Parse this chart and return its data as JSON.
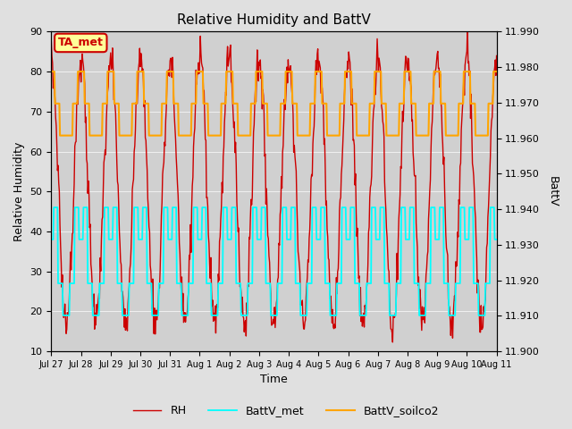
{
  "title": "Relative Humidity and BattV",
  "ylabel_left": "Relative Humidity",
  "ylabel_right": "BattV",
  "xlabel": "Time",
  "ylim_left": [
    10,
    90
  ],
  "ylim_right": [
    11.9,
    11.99
  ],
  "xtick_labels": [
    "Jul 27",
    "Jul 28",
    "Jul 29",
    "Jul 30",
    "Jul 31",
    "Aug 1",
    "Aug 2",
    "Aug 3",
    "Aug 4",
    "Aug 5",
    "Aug 6",
    "Aug 7",
    "Aug 8",
    "Aug 9",
    "Aug 10",
    "Aug 11"
  ],
  "annotation_text": "TA_met",
  "annotation_color": "#cc0000",
  "annotation_bg": "#ffff99",
  "fig_bg_color": "#e0e0e0",
  "plot_bg_color": "#d0d0d0",
  "rh_color": "#cc0000",
  "battv_met_color": "#00ffff",
  "battv_soilco2_color": "#ffa500",
  "legend_rh_label": "RH",
  "legend_battv_met_label": "BattV_met",
  "legend_soilco2_label": "BattV_soilco2"
}
